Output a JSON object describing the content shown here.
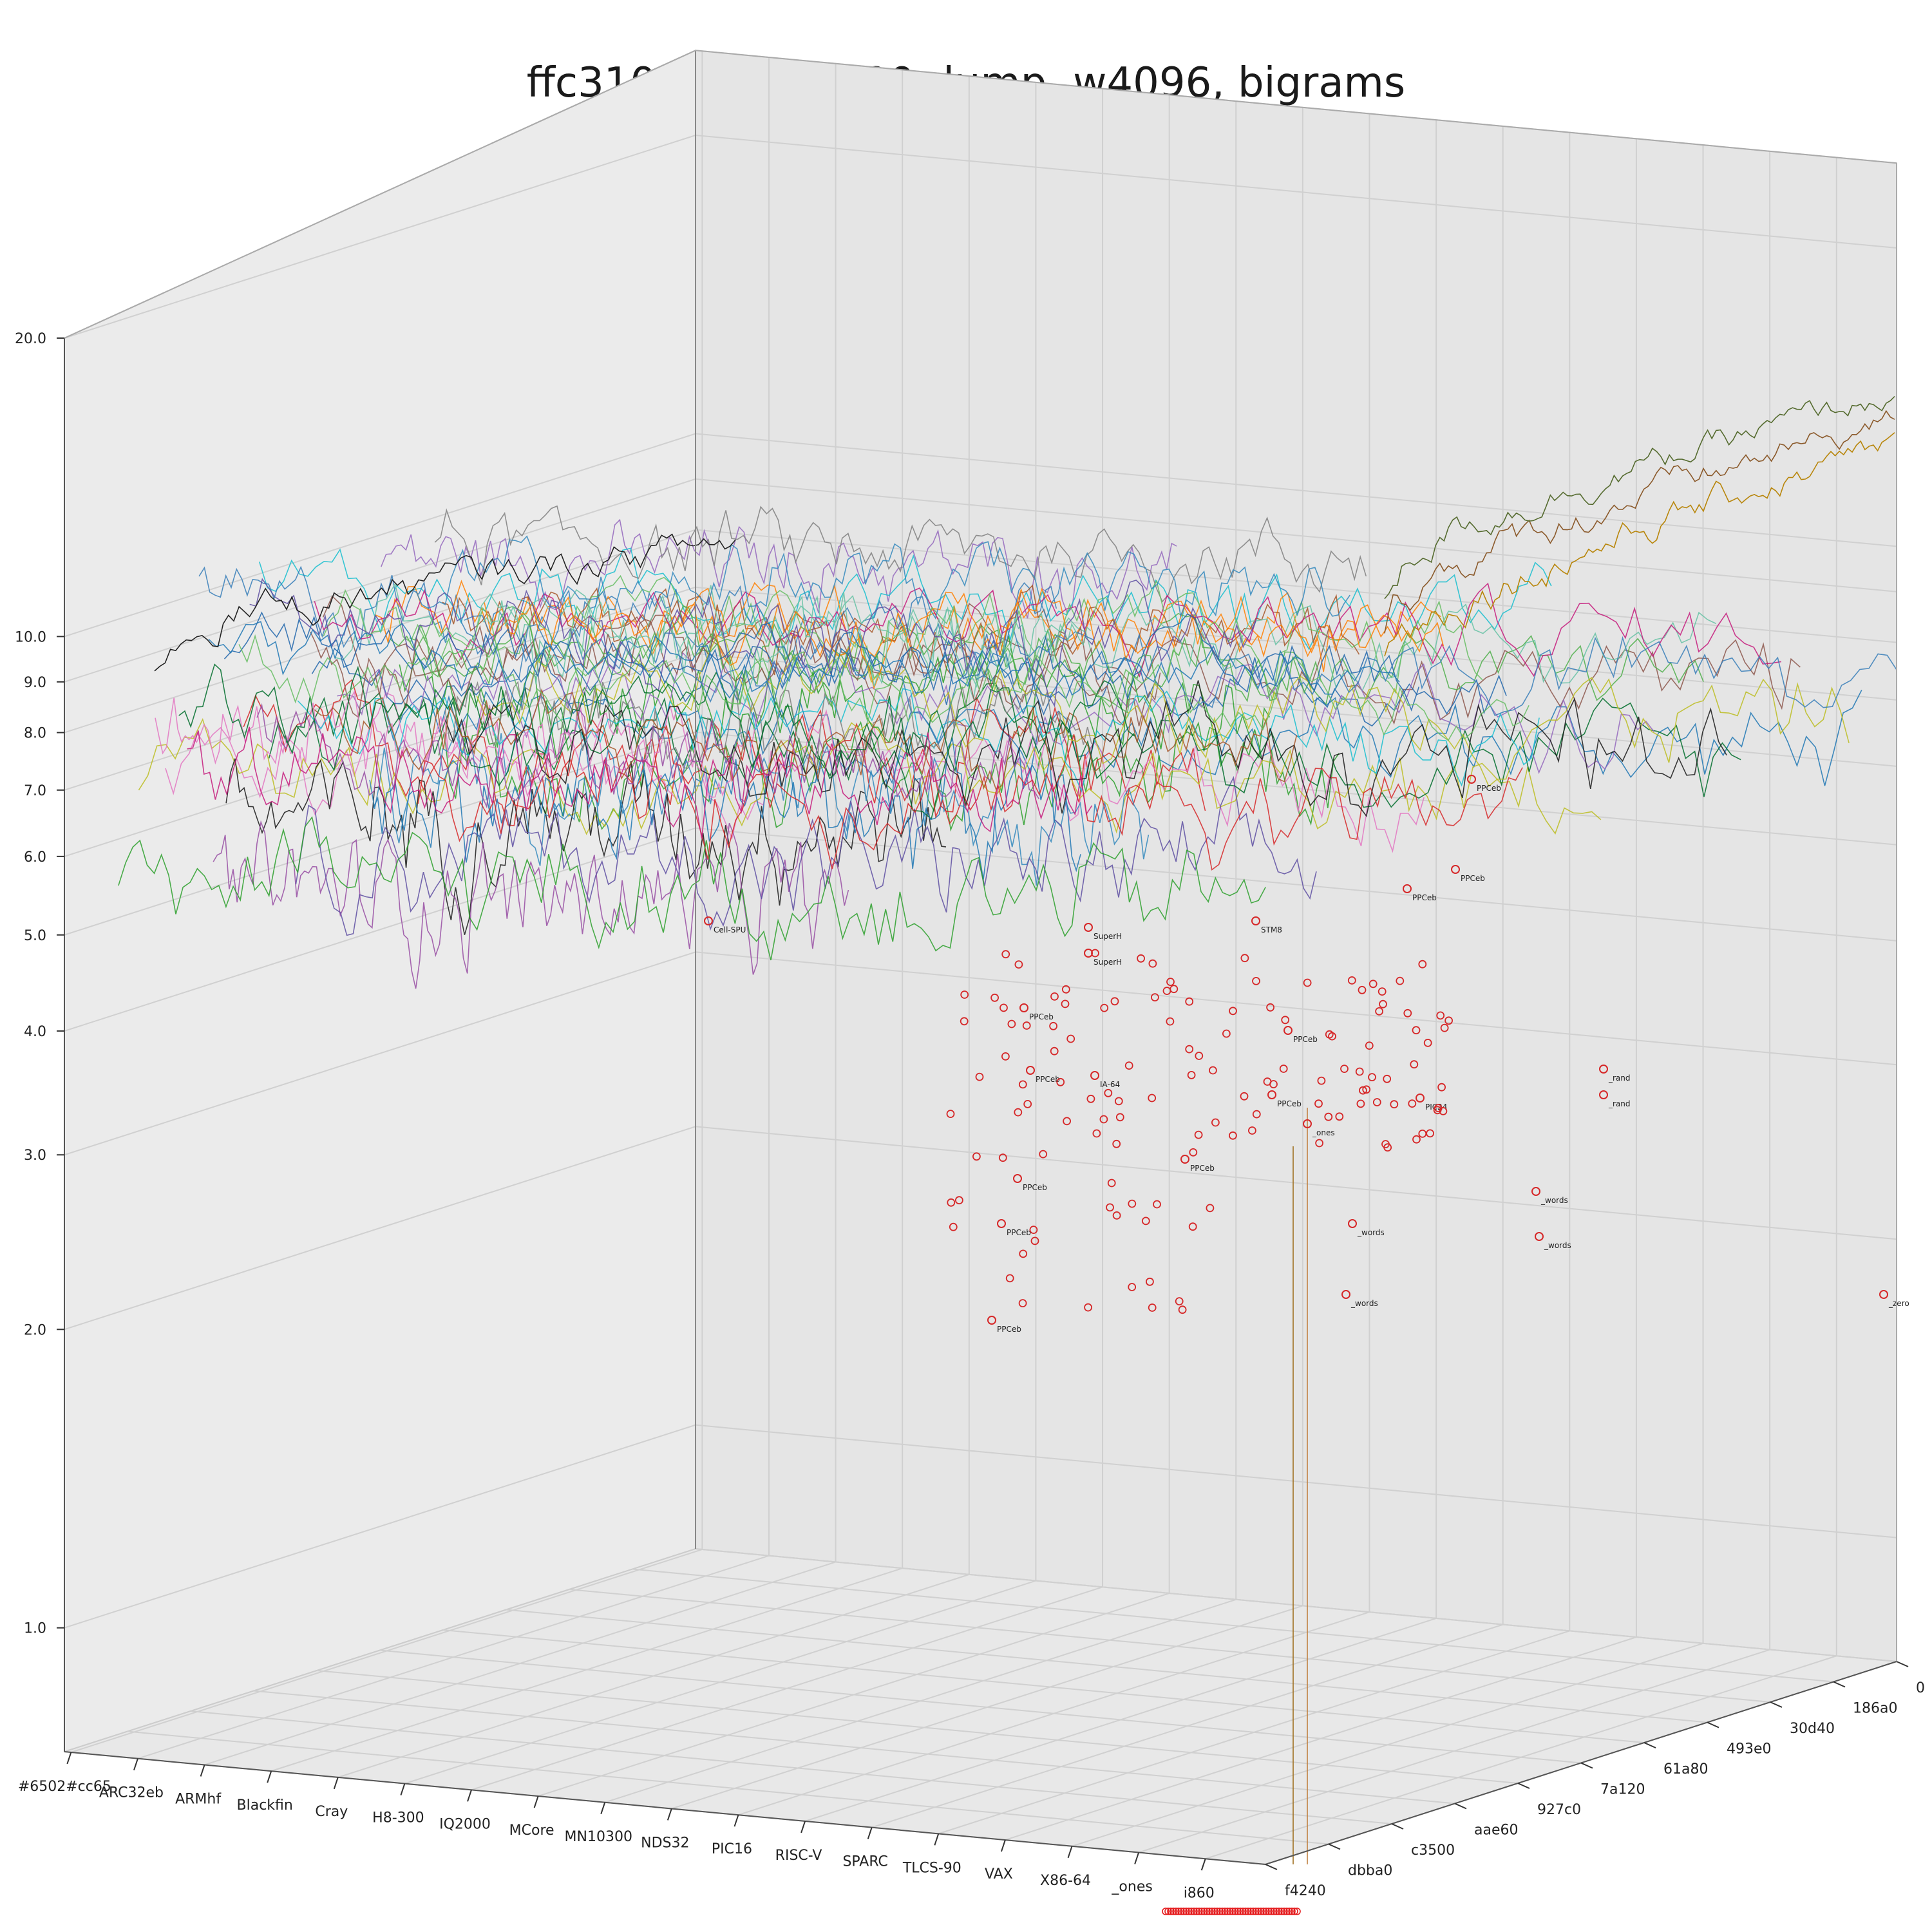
{
  "chart_data": {
    "type": "line",
    "projection": "3d",
    "title": "ffc31000_ffd2b000.dump, w4096, bigrams",
    "scale": {
      "z": "log"
    },
    "z_ticks": [
      "1.0",
      "2.0",
      "3.0",
      "4.0",
      "5.0",
      "6.0",
      "7.0",
      "8.0",
      "9.0",
      "10.0",
      "20.0"
    ],
    "y_ticks": [
      "0",
      "186a0",
      "30d40",
      "493e0",
      "61a80",
      "7a120",
      "927c0",
      "aae60",
      "c3500",
      "dbba0",
      "f4240"
    ],
    "x_ticks": [
      "#6502#cc65",
      "ARC32eb",
      "ARMhf",
      "Blackfin",
      "Cray",
      "H8-300",
      "IQ2000",
      "MCore",
      "MN10300",
      "NDS32",
      "PIC16",
      "RISC-V",
      "SPARC",
      "TLCS-90",
      "VAX",
      "X86-64",
      "_ones",
      "i860"
    ],
    "annotations": [
      {
        "label": "PPCeb",
        "z": 4.1
      },
      {
        "label": "PPCeb",
        "z": 3.4
      },
      {
        "label": "PPCeb",
        "z": 2.7
      },
      {
        "label": "PPCeb",
        "z": 2.3
      },
      {
        "label": "PPCeb",
        "z": 2.0
      },
      {
        "label": "PPCeb",
        "z": 6.9
      },
      {
        "label": "PPCeb",
        "z": 5.7
      },
      {
        "label": "PPCeb",
        "z": 4.6
      },
      {
        "label": "PPCeb",
        "z": 3.7
      },
      {
        "label": "PPCeb",
        "z": 3.2
      },
      {
        "label": "PPCeb",
        "z": 2.6
      },
      {
        "label": "SuperH",
        "z": 5.1
      },
      {
        "label": "SuperH",
        "z": 5.4
      },
      {
        "label": "STM8",
        "z": 5.0
      },
      {
        "label": "IA-64",
        "z": 3.4
      },
      {
        "label": "Cell-SPU",
        "z": 4.8
      },
      {
        "label": "PIC24",
        "z": 3.1
      },
      {
        "label": "_ones",
        "z": 2.9
      },
      {
        "label": "_words",
        "z": 2.6
      },
      {
        "label": "_words",
        "z": 2.3
      },
      {
        "label": "_words",
        "z": 2.1
      },
      {
        "label": "_words",
        "z": 1.6
      },
      {
        "label": "_rand",
        "z": 3.4
      },
      {
        "label": "_rand",
        "z": 3.2
      },
      {
        "label": "_zero",
        "z": 2.0
      }
    ]
  }
}
